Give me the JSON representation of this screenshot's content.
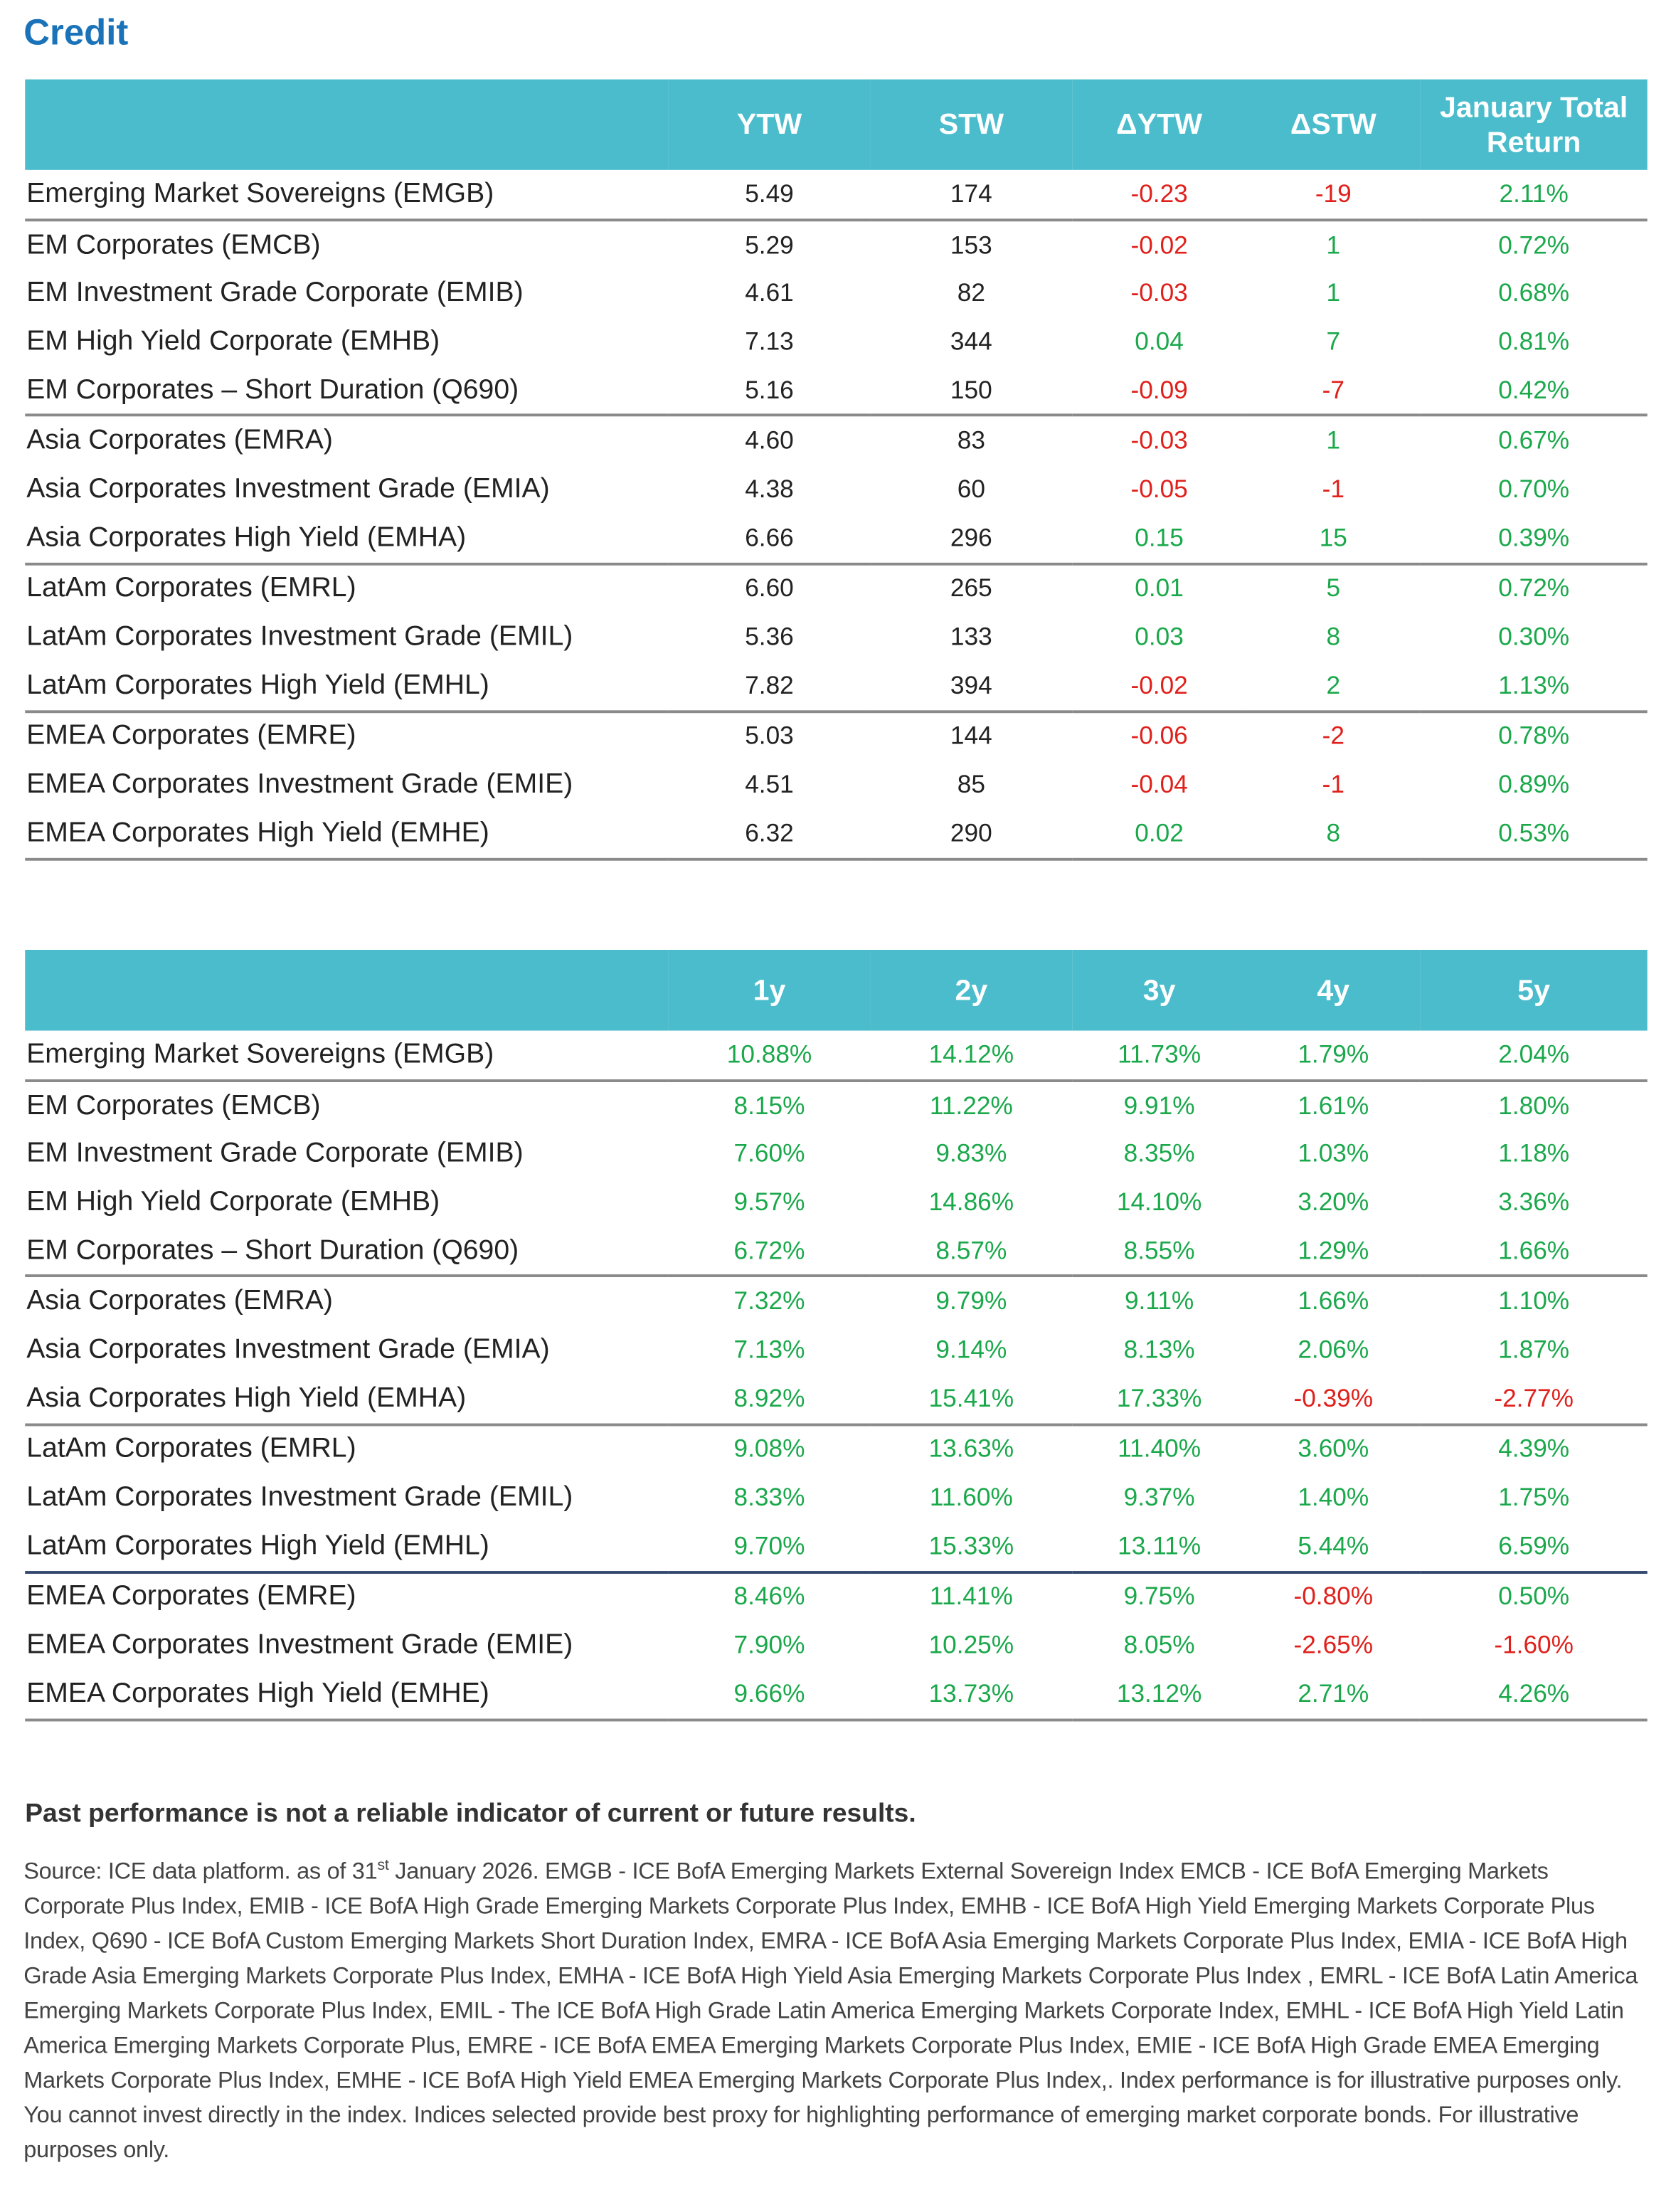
{
  "title": "Credit",
  "table1": {
    "columns": [
      "YTW",
      "STW",
      "ΔYTW",
      "ΔSTW",
      "January Total Return"
    ],
    "groups": [
      [
        {
          "label": "Emerging Market Sovereigns (EMGB)",
          "cells": [
            "5.49",
            "174",
            "-0.23",
            "-19",
            "2.11%"
          ]
        }
      ],
      [
        {
          "label": "EM Corporates (EMCB)",
          "cells": [
            "5.29",
            "153",
            "-0.02",
            "1",
            "0.72%"
          ]
        },
        {
          "label": "EM Investment Grade Corporate (EMIB)",
          "cells": [
            "4.61",
            "82",
            "-0.03",
            "1",
            "0.68%"
          ]
        },
        {
          "label": "EM High Yield Corporate (EMHB)",
          "cells": [
            "7.13",
            "344",
            "0.04",
            "7",
            "0.81%"
          ]
        },
        {
          "label": "EM Corporates – Short Duration (Q690)",
          "cells": [
            "5.16",
            "150",
            "-0.09",
            "-7",
            "0.42%"
          ]
        }
      ],
      [
        {
          "label": "Asia Corporates (EMRA)",
          "cells": [
            "4.60",
            "83",
            "-0.03",
            "1",
            "0.67%"
          ]
        },
        {
          "label": "Asia Corporates Investment Grade (EMIA)",
          "cells": [
            "4.38",
            "60",
            "-0.05",
            "-1",
            "0.70%"
          ]
        },
        {
          "label": "Asia Corporates High Yield (EMHA)",
          "cells": [
            "6.66",
            "296",
            "0.15",
            "15",
            "0.39%"
          ]
        }
      ],
      [
        {
          "label": "LatAm Corporates (EMRL)",
          "cells": [
            "6.60",
            "265",
            "0.01",
            "5",
            "0.72%"
          ]
        },
        {
          "label": "LatAm Corporates Investment Grade (EMIL)",
          "cells": [
            "5.36",
            "133",
            "0.03",
            "8",
            "0.30%"
          ]
        },
        {
          "label": "LatAm Corporates High Yield (EMHL)",
          "cells": [
            "7.82",
            "394",
            "-0.02",
            "2",
            "1.13%"
          ]
        }
      ],
      [
        {
          "label": "EMEA Corporates (EMRE)",
          "cells": [
            "5.03",
            "144",
            "-0.06",
            "-2",
            "0.78%"
          ]
        },
        {
          "label": "EMEA Corporates Investment Grade (EMIE)",
          "cells": [
            "4.51",
            "85",
            "-0.04",
            "-1",
            "0.89%"
          ]
        },
        {
          "label": "EMEA Corporates High Yield (EMHE)",
          "cells": [
            "6.32",
            "290",
            "0.02",
            "8",
            "0.53%"
          ]
        }
      ]
    ]
  },
  "table2": {
    "columns": [
      "1y",
      "2y",
      "3y",
      "4y",
      "5y"
    ],
    "groups": [
      [
        {
          "label": "Emerging Market Sovereigns (EMGB)",
          "cells": [
            "10.88%",
            "14.12%",
            "11.73%",
            "1.79%",
            "2.04%"
          ]
        }
      ],
      [
        {
          "label": "EM Corporates (EMCB)",
          "cells": [
            "8.15%",
            "11.22%",
            "9.91%",
            "1.61%",
            "1.80%"
          ]
        },
        {
          "label": "EM Investment Grade Corporate (EMIB)",
          "cells": [
            "7.60%",
            "9.83%",
            "8.35%",
            "1.03%",
            "1.18%"
          ]
        },
        {
          "label": "EM High Yield Corporate (EMHB)",
          "cells": [
            "9.57%",
            "14.86%",
            "14.10%",
            "3.20%",
            "3.36%"
          ]
        },
        {
          "label": "EM Corporates – Short Duration (Q690)",
          "cells": [
            "6.72%",
            "8.57%",
            "8.55%",
            "1.29%",
            "1.66%"
          ]
        }
      ],
      [
        {
          "label": "Asia Corporates (EMRA)",
          "cells": [
            "7.32%",
            "9.79%",
            "9.11%",
            "1.66%",
            "1.10%"
          ]
        },
        {
          "label": "Asia Corporates Investment Grade (EMIA)",
          "cells": [
            "7.13%",
            "9.14%",
            "8.13%",
            "2.06%",
            "1.87%"
          ]
        },
        {
          "label": "Asia Corporates High Yield (EMHA)",
          "cells": [
            "8.92%",
            "15.41%",
            "17.33%",
            "-0.39%",
            "-2.77%"
          ]
        }
      ],
      [
        {
          "label": "LatAm Corporates (EMRL)",
          "cells": [
            "9.08%",
            "13.63%",
            "11.40%",
            "3.60%",
            "4.39%"
          ]
        },
        {
          "label": "LatAm Corporates Investment Grade (EMIL)",
          "cells": [
            "8.33%",
            "11.60%",
            "9.37%",
            "1.40%",
            "1.75%"
          ]
        },
        {
          "label": "LatAm Corporates High Yield (EMHL)",
          "cells": [
            "9.70%",
            "15.33%",
            "13.11%",
            "5.44%",
            "6.59%"
          ]
        }
      ],
      [
        {
          "label": "EMEA Corporates (EMRE)",
          "cells": [
            "8.46%",
            "11.41%",
            "9.75%",
            "-0.80%",
            "0.50%"
          ]
        },
        {
          "label": "EMEA Corporates Investment Grade (EMIE)",
          "cells": [
            "7.90%",
            "10.25%",
            "8.05%",
            "-2.65%",
            "-1.60%"
          ]
        },
        {
          "label": "EMEA Corporates High Yield (EMHE)",
          "cells": [
            "9.66%",
            "13.73%",
            "13.12%",
            "2.71%",
            "4.26%"
          ]
        }
      ]
    ]
  },
  "disclaimer": "Past performance is not a reliable indicator of current or future results.",
  "source": {
    "before": "Source: ICE data platform. as of 31",
    "sup": "st",
    "after": " January 2026. EMGB - ICE BofA Emerging Markets External Sovereign Index EMCB - ICE BofA Emerging Markets Corporate Plus Index,  EMIB - ICE BofA High Grade Emerging Markets Corporate Plus Index, EMHB - ICE BofA High Yield Emerging Markets Corporate Plus Index, Q690 - ICE BofA Custom Emerging Markets Short Duration Index, EMRA - ICE BofA Asia Emerging Markets Corporate Plus Index, EMIA - ICE BofA High Grade Asia Emerging Markets Corporate Plus Index, EMHA - ICE BofA High Yield Asia Emerging Markets Corporate Plus Index , EMRL - ICE BofA Latin America Emerging Markets Corporate Plus Index, EMIL - The ICE BofA High Grade Latin America Emerging Markets Corporate Index, EMHL - ICE BofA High Yield Latin America Emerging Markets Corporate Plus, EMRE - ICE BofA EMEA Emerging Markets Corporate Plus Index, EMIE - ICE BofA High Grade EMEA Emerging Markets Corporate Plus Index, EMHE - ICE BofA High Yield EMEA Emerging Markets Corporate Plus Index,. Index performance is for illustrative purposes only. You cannot invest directly in the index. Indices selected provide best proxy for highlighting performance of emerging market corporate bonds. For illustrative purposes only."
  },
  "colors": {
    "positive": "#1aa84b",
    "negative": "#e0201b",
    "header": "#4bbccc",
    "title": "#1a73b8"
  }
}
